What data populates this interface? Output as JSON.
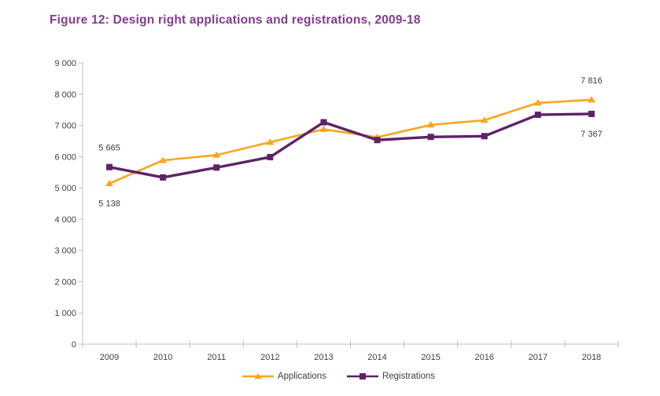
{
  "colors": {
    "title": "#823C8F",
    "applications": "#F7A71E",
    "registrations": "#5E2367",
    "axis_line": "#BFBFBF",
    "axis_text": "#404040",
    "data_label_text": "#3A3A3A"
  },
  "chart_data": {
    "type": "line",
    "title": "Figure 12: Design right applications and registrations, 2009-18",
    "categories": [
      "2009",
      "2010",
      "2011",
      "2012",
      "2013",
      "2014",
      "2015",
      "2016",
      "2017",
      "2018"
    ],
    "series": [
      {
        "name": "Applications",
        "marker": "triangle",
        "color": "#F7A71E",
        "values": [
          5138,
          5880,
          6050,
          6460,
          6875,
          6620,
          7015,
          7165,
          7720,
          7816
        ]
      },
      {
        "name": "Registrations",
        "marker": "square",
        "color": "#5E2367",
        "values": [
          5665,
          5335,
          5650,
          5985,
          7100,
          6530,
          6630,
          6655,
          7340,
          7367
        ]
      }
    ],
    "ylim": [
      0,
      9000
    ],
    "ytick_step": 1000,
    "ytick_labels": [
      "0",
      "1 000",
      "2 000",
      "3 000",
      "4 000",
      "5 000",
      "6 000",
      "7 000",
      "8 000",
      "9 000"
    ],
    "grid": false,
    "legend_position": "bottom",
    "annotations": [
      {
        "text": "5 665",
        "series": 1,
        "category": 0,
        "position": "above"
      },
      {
        "text": "5 138",
        "series": 0,
        "category": 0,
        "position": "below"
      },
      {
        "text": "7 816",
        "series": 0,
        "category": 9,
        "position": "above"
      },
      {
        "text": "7 367",
        "series": 1,
        "category": 9,
        "position": "below"
      }
    ]
  }
}
